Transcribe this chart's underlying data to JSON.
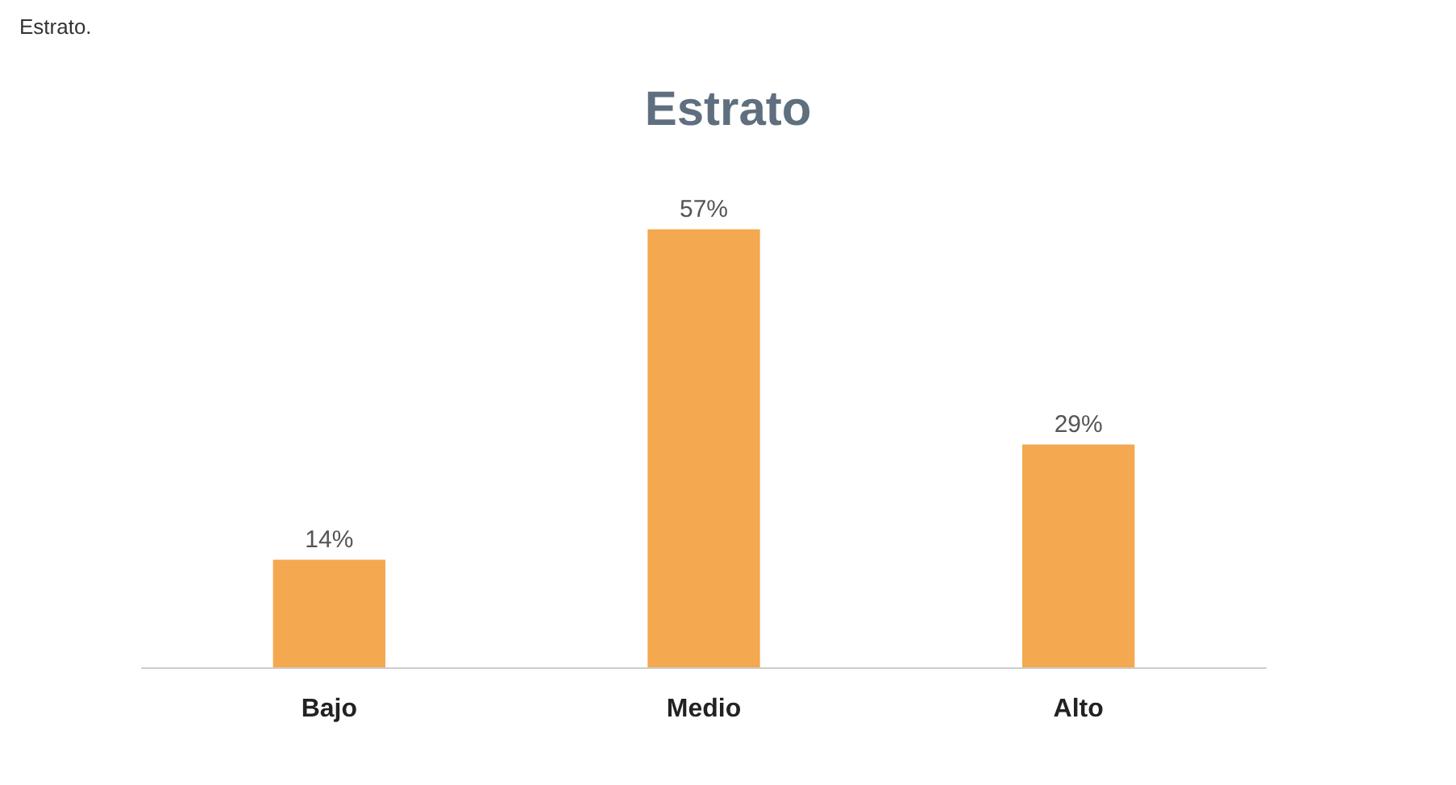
{
  "chart_data": {
    "type": "bar",
    "title": "Estrato",
    "annotations": [
      "Estrato."
    ],
    "categories": [
      "Bajo",
      "Medio",
      "Alto"
    ],
    "values": [
      14,
      57,
      29
    ],
    "color": "#f4a850",
    "value_labels": [
      "14%",
      "57%",
      "29%"
    ],
    "tick_labels": "x"
  }
}
